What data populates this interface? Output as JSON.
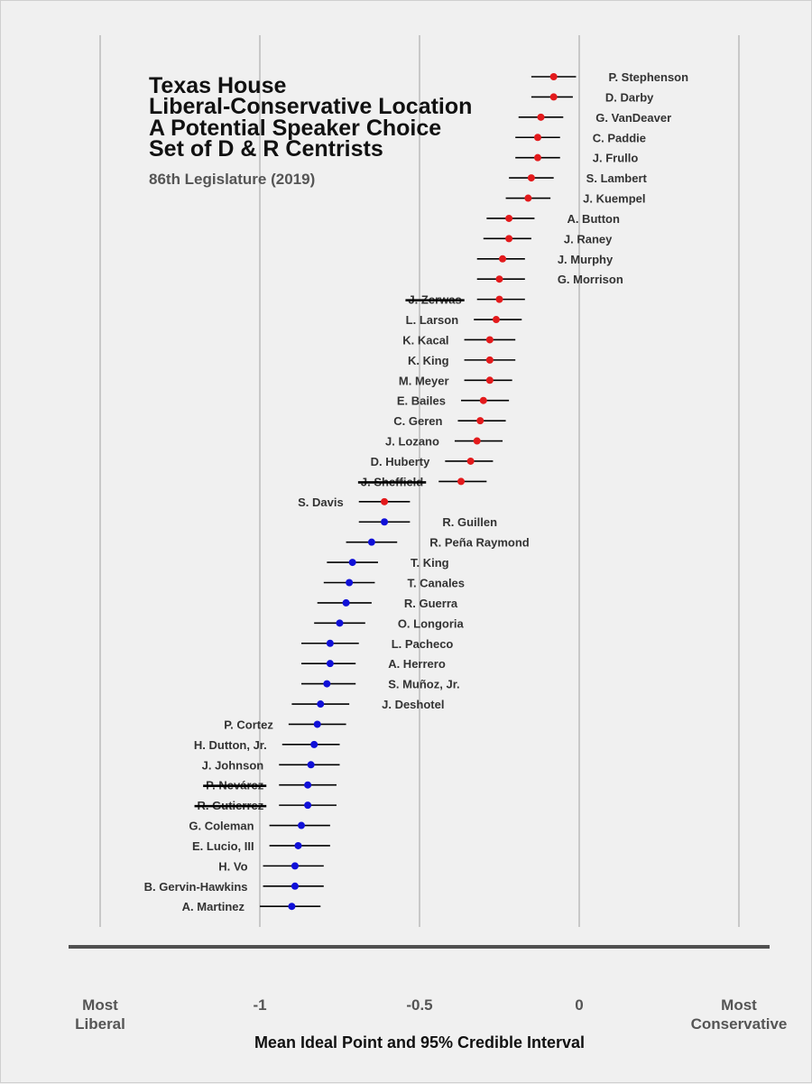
{
  "chart_data": {
    "type": "scatter",
    "title_lines": [
      "Texas House",
      "Liberal-Conservative Location",
      "A Potential Speaker Choice",
      "Set of D & R Centrists"
    ],
    "subtitle": "86th Legislature (2019)",
    "xlabel": "Mean Ideal Point and 95% Credible Interval",
    "xlim": [
      -1.5,
      0.5
    ],
    "grid": true,
    "ticks": [
      {
        "value": -1.5,
        "label_lines": [
          "Most",
          "Liberal"
        ]
      },
      {
        "value": -1,
        "label_lines": [
          "-1"
        ]
      },
      {
        "value": -0.5,
        "label_lines": [
          "-0.5"
        ]
      },
      {
        "value": 0,
        "label_lines": [
          "0"
        ]
      },
      {
        "value": 0.5,
        "label_lines": [
          "Most",
          "Conservative"
        ]
      }
    ],
    "colors": {
      "R": "#e31a1c",
      "D": "#1010d8",
      "interval": "#000000",
      "grid": "#c8c8c8",
      "baseline": "#505050"
    },
    "members": [
      {
        "name": "P. Stephenson",
        "party": "R",
        "mean": -0.08,
        "low": -0.15,
        "high": -0.01,
        "label_side": "right",
        "struck": false
      },
      {
        "name": "D. Darby",
        "party": "R",
        "mean": -0.08,
        "low": -0.15,
        "high": -0.02,
        "label_side": "right",
        "struck": false
      },
      {
        "name": "G. VanDeaver",
        "party": "R",
        "mean": -0.12,
        "low": -0.19,
        "high": -0.05,
        "label_side": "right",
        "struck": false
      },
      {
        "name": "C. Paddie",
        "party": "R",
        "mean": -0.13,
        "low": -0.2,
        "high": -0.06,
        "label_side": "right",
        "struck": false
      },
      {
        "name": "J. Frullo",
        "party": "R",
        "mean": -0.13,
        "low": -0.2,
        "high": -0.06,
        "label_side": "right",
        "struck": false
      },
      {
        "name": "S. Lambert",
        "party": "R",
        "mean": -0.15,
        "low": -0.22,
        "high": -0.08,
        "label_side": "right",
        "struck": false
      },
      {
        "name": "J. Kuempel",
        "party": "R",
        "mean": -0.16,
        "low": -0.23,
        "high": -0.09,
        "label_side": "right",
        "struck": false
      },
      {
        "name": "A. Button",
        "party": "R",
        "mean": -0.22,
        "low": -0.29,
        "high": -0.14,
        "label_side": "right",
        "struck": false
      },
      {
        "name": "J. Raney",
        "party": "R",
        "mean": -0.22,
        "low": -0.3,
        "high": -0.15,
        "label_side": "right",
        "struck": false
      },
      {
        "name": "J. Murphy",
        "party": "R",
        "mean": -0.24,
        "low": -0.32,
        "high": -0.17,
        "label_side": "right",
        "struck": false
      },
      {
        "name": "G. Morrison",
        "party": "R",
        "mean": -0.25,
        "low": -0.32,
        "high": -0.17,
        "label_side": "right",
        "struck": false
      },
      {
        "name": "J. Zerwas",
        "party": "R",
        "mean": -0.25,
        "low": -0.32,
        "high": -0.17,
        "label_side": "left",
        "struck": true
      },
      {
        "name": "L. Larson",
        "party": "R",
        "mean": -0.26,
        "low": -0.33,
        "high": -0.18,
        "label_side": "left",
        "struck": false
      },
      {
        "name": "K. Kacal",
        "party": "R",
        "mean": -0.28,
        "low": -0.36,
        "high": -0.2,
        "label_side": "left",
        "struck": false
      },
      {
        "name": "K. King",
        "party": "R",
        "mean": -0.28,
        "low": -0.36,
        "high": -0.2,
        "label_side": "left",
        "struck": false
      },
      {
        "name": "M. Meyer",
        "party": "R",
        "mean": -0.28,
        "low": -0.36,
        "high": -0.21,
        "label_side": "left",
        "struck": false
      },
      {
        "name": "E. Bailes",
        "party": "R",
        "mean": -0.3,
        "low": -0.37,
        "high": -0.22,
        "label_side": "left",
        "struck": false
      },
      {
        "name": "C. Geren",
        "party": "R",
        "mean": -0.31,
        "low": -0.38,
        "high": -0.23,
        "label_side": "left",
        "struck": false
      },
      {
        "name": "J. Lozano",
        "party": "R",
        "mean": -0.32,
        "low": -0.39,
        "high": -0.24,
        "label_side": "left",
        "struck": false
      },
      {
        "name": "D. Huberty",
        "party": "R",
        "mean": -0.34,
        "low": -0.42,
        "high": -0.27,
        "label_side": "left",
        "struck": false
      },
      {
        "name": "J. Sheffield",
        "party": "R",
        "mean": -0.37,
        "low": -0.44,
        "high": -0.29,
        "label_side": "left",
        "struck": true
      },
      {
        "name": "S. Davis",
        "party": "R",
        "mean": -0.61,
        "low": -0.69,
        "high": -0.53,
        "label_side": "left",
        "struck": false
      },
      {
        "name": "R. Guillen",
        "party": "D",
        "mean": -0.61,
        "low": -0.69,
        "high": -0.53,
        "label_side": "right",
        "struck": false
      },
      {
        "name": "R. Peña Raymond",
        "party": "D",
        "mean": -0.65,
        "low": -0.73,
        "high": -0.57,
        "label_side": "right",
        "struck": false
      },
      {
        "name": "T. King",
        "party": "D",
        "mean": -0.71,
        "low": -0.79,
        "high": -0.63,
        "label_side": "right",
        "struck": false
      },
      {
        "name": "T. Canales",
        "party": "D",
        "mean": -0.72,
        "low": -0.8,
        "high": -0.64,
        "label_side": "right",
        "struck": false
      },
      {
        "name": "R. Guerra",
        "party": "D",
        "mean": -0.73,
        "low": -0.82,
        "high": -0.65,
        "label_side": "right",
        "struck": false
      },
      {
        "name": "O. Longoria",
        "party": "D",
        "mean": -0.75,
        "low": -0.83,
        "high": -0.67,
        "label_side": "right",
        "struck": false
      },
      {
        "name": "L. Pacheco",
        "party": "D",
        "mean": -0.78,
        "low": -0.87,
        "high": -0.69,
        "label_side": "right",
        "struck": false
      },
      {
        "name": "A. Herrero",
        "party": "D",
        "mean": -0.78,
        "low": -0.87,
        "high": -0.7,
        "label_side": "right",
        "struck": false
      },
      {
        "name": "S. Muñoz, Jr.",
        "party": "D",
        "mean": -0.79,
        "low": -0.87,
        "high": -0.7,
        "label_side": "right",
        "struck": false
      },
      {
        "name": "J. Deshotel",
        "party": "D",
        "mean": -0.81,
        "low": -0.9,
        "high": -0.72,
        "label_side": "right",
        "struck": false
      },
      {
        "name": "P. Cortez",
        "party": "D",
        "mean": -0.82,
        "low": -0.91,
        "high": -0.73,
        "label_side": "left",
        "struck": false
      },
      {
        "name": "H. Dutton, Jr.",
        "party": "D",
        "mean": -0.83,
        "low": -0.93,
        "high": -0.75,
        "label_side": "left",
        "struck": false
      },
      {
        "name": "J. Johnson",
        "party": "D",
        "mean": -0.84,
        "low": -0.94,
        "high": -0.75,
        "label_side": "left",
        "struck": false
      },
      {
        "name": "P. Nevárez",
        "party": "D",
        "mean": -0.85,
        "low": -0.94,
        "high": -0.76,
        "label_side": "left",
        "struck": true
      },
      {
        "name": "R. Gutierrez",
        "party": "D",
        "mean": -0.85,
        "low": -0.94,
        "high": -0.76,
        "label_side": "left",
        "struck": true
      },
      {
        "name": "G. Coleman",
        "party": "D",
        "mean": -0.87,
        "low": -0.97,
        "high": -0.78,
        "label_side": "left",
        "struck": false
      },
      {
        "name": "E. Lucio, III",
        "party": "D",
        "mean": -0.88,
        "low": -0.97,
        "high": -0.78,
        "label_side": "left",
        "struck": false
      },
      {
        "name": "H. Vo",
        "party": "D",
        "mean": -0.89,
        "low": -0.99,
        "high": -0.8,
        "label_side": "left",
        "struck": false
      },
      {
        "name": "B. Gervin-Hawkins",
        "party": "D",
        "mean": -0.89,
        "low": -0.99,
        "high": -0.8,
        "label_side": "left",
        "struck": false
      },
      {
        "name": "A. Martinez",
        "party": "D",
        "mean": -0.9,
        "low": -1.0,
        "high": -0.81,
        "label_side": "left",
        "struck": false
      }
    ]
  }
}
